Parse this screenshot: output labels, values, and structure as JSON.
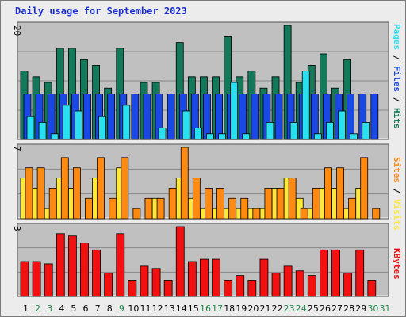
{
  "chart_data": {
    "type": "bar",
    "title": "Daily usage for September 2023",
    "days": [
      "1",
      "2",
      "3",
      "4",
      "5",
      "6",
      "7",
      "8",
      "9",
      "10",
      "11",
      "12",
      "13",
      "14",
      "15",
      "16",
      "17",
      "18",
      "19",
      "20",
      "21",
      "22",
      "23",
      "24",
      "25",
      "26",
      "27",
      "28",
      "29",
      "30",
      "31"
    ],
    "weekend_days": [
      "2",
      "3",
      "9",
      "16",
      "17",
      "23",
      "24",
      "30",
      "31"
    ],
    "panels": [
      {
        "id": "top",
        "ymax_label": "20",
        "ymax": 20,
        "series": [
          {
            "name": "Hits",
            "color": "#14785a",
            "values": [
              12,
              11,
              10,
              16,
              16,
              14,
              13,
              9,
              16,
              0,
              10,
              10,
              0,
              17,
              11,
              11,
              11,
              18,
              11,
              12,
              9,
              11,
              20,
              10,
              13,
              15,
              9,
              14,
              0,
              0,
              0
            ]
          },
          {
            "name": "Files",
            "color": "#1948e6",
            "values": [
              8,
              8,
              8,
              8,
              8,
              8,
              8,
              8,
              8,
              8,
              8,
              8,
              8,
              8,
              8,
              8,
              8,
              8,
              8,
              8,
              8,
              8,
              8,
              8,
              8,
              8,
              8,
              8,
              8,
              8,
              0
            ]
          },
          {
            "name": "Pages",
            "color": "#28e0f0",
            "values": [
              4,
              3,
              1,
              6,
              5,
              0,
              4,
              0,
              6,
              0,
              0,
              2,
              0,
              5,
              2,
              1,
              1,
              10,
              1,
              0,
              3,
              0,
              3,
              12,
              1,
              3,
              5,
              1,
              3,
              0,
              0
            ]
          }
        ]
      },
      {
        "id": "middle",
        "ymax_label": "7",
        "ymax": 7,
        "series": [
          {
            "name": "Visits",
            "color": "#ffe83a",
            "values": [
              4,
              3,
              1,
              4,
              3,
              0,
              4,
              0,
              5,
              0,
              0,
              2,
              0,
              4,
              2,
              1,
              1,
              1,
              1,
              1,
              1,
              3,
              4,
              2,
              1,
              3,
              3,
              1,
              3,
              0,
              0
            ]
          },
          {
            "name": "Sites",
            "color": "#ff8a12",
            "values": [
              5,
              5,
              3,
              6,
              5,
              2,
              6,
              2,
              6,
              1,
              2,
              2,
              3,
              7,
              4,
              3,
              3,
              2,
              2,
              1,
              3,
              3,
              4,
              1,
              3,
              5,
              5,
              2,
              6,
              1,
              0
            ]
          }
        ]
      },
      {
        "id": "bottom",
        "ymax_label": "3",
        "ymax": 3,
        "series": [
          {
            "name": "KBytes",
            "color": "#f21010",
            "values": [
              1.5,
              1.5,
              1.4,
              2.7,
              2.6,
              2.3,
              2.0,
              1.0,
              2.7,
              0.7,
              1.3,
              1.2,
              0.7,
              3.0,
              1.5,
              1.6,
              1.6,
              0.7,
              0.9,
              0.7,
              1.6,
              1.0,
              1.3,
              1.1,
              0.9,
              2.0,
              2.0,
              1.0,
              2.0,
              0.7,
              0
            ]
          }
        ]
      }
    ]
  },
  "legend": {
    "top": [
      {
        "text": "Hits",
        "color": "#14785a"
      },
      {
        "text": "Files",
        "color": "#1948e6"
      },
      {
        "text": "Pages",
        "color": "#28e0f0"
      }
    ],
    "middle": [
      {
        "text": "Visits",
        "color": "#ffe83a"
      },
      {
        "text": "Sites",
        "color": "#ff8a12"
      }
    ],
    "bottom": [
      {
        "text": "KBytes",
        "color": "#f21010"
      }
    ],
    "separator": "/"
  },
  "colors": {
    "plot_background": "#c0c0c0",
    "gridline": "#888888",
    "weekday_label": "#000000",
    "weekend_label": "#1e8a4a",
    "title": "#1a2fd0"
  }
}
